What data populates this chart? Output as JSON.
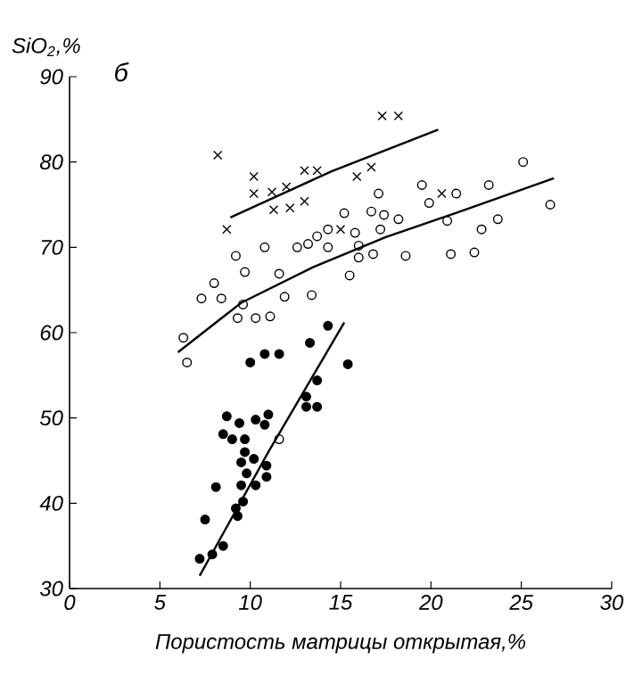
{
  "chart_data": {
    "type": "scatter",
    "xlabel": "Пористость матрицы открытая,%",
    "ylabel": "SiO$_{2}$,%",
    "annotations": [
      "б"
    ],
    "xlim": [
      0,
      30
    ],
    "ylim": [
      30,
      90
    ],
    "xticks": [
      0,
      5,
      10,
      15,
      20,
      25,
      30
    ],
    "yticks": [
      30,
      40,
      50,
      60,
      70,
      80,
      90
    ],
    "grid": false,
    "series": [
      {
        "marker": "cross",
        "color": "#000000",
        "x": [
          8.2,
          17.3,
          18.2,
          10.2,
          10.2,
          11.2,
          12.0,
          13.0,
          13.7,
          11.3,
          12.2,
          13.0,
          15.9,
          16.7,
          8.7,
          15.0,
          20.6
        ],
        "values": [
          80.8,
          85.4,
          85.4,
          78.3,
          76.3,
          76.5,
          77.1,
          79.0,
          79.0,
          74.4,
          74.6,
          75.4,
          78.3,
          79.4,
          72.1,
          72.1,
          76.3
        ]
      },
      {
        "marker": "circle",
        "color": "#000000",
        "x": [
          9.2,
          8.0,
          9.7,
          11.6,
          7.3,
          8.4,
          9.6,
          11.9,
          13.4,
          9.3,
          10.3,
          11.1,
          6.3,
          6.5,
          16.0,
          15.5,
          11.6,
          10.8,
          12.6,
          13.2,
          13.7,
          14.3,
          14.3,
          15.2,
          15.8,
          16.0,
          16.8,
          17.1,
          16.7,
          17.4,
          18.2,
          17.2,
          18.6,
          19.5,
          19.9,
          21.4,
          20.9,
          21.1,
          22.4,
          22.8,
          23.7,
          23.2,
          25.1,
          26.6
        ],
        "values": [
          69.0,
          65.8,
          67.1,
          66.9,
          64.0,
          64.0,
          63.3,
          64.2,
          64.4,
          61.7,
          61.7,
          61.9,
          59.4,
          56.5,
          68.8,
          66.7,
          47.5,
          70.0,
          70.0,
          70.4,
          71.3,
          72.1,
          70.0,
          74.0,
          71.7,
          70.2,
          69.2,
          76.3,
          74.2,
          73.8,
          73.3,
          72.1,
          69.0,
          77.3,
          75.2,
          76.3,
          73.1,
          69.2,
          69.4,
          72.1,
          73.3,
          77.3,
          80.0,
          75.0
        ]
      },
      {
        "marker": "circle",
        "color": "#000000",
        "x": [
          8.5,
          9.0,
          9.7,
          9.7,
          10.2,
          9.5,
          10.9,
          9.8,
          10.9,
          8.1,
          9.5,
          10.3,
          9.6,
          9.2,
          9.3,
          7.5,
          8.5,
          7.9,
          7.2,
          14.3,
          13.3,
          10.0,
          10.8,
          11.6,
          15.4,
          13.7,
          13.1,
          13.1,
          13.7,
          11.0,
          8.7,
          9.4,
          10.3,
          10.8
        ],
        "values": [
          48.1,
          47.5,
          47.5,
          46.0,
          45.2,
          44.8,
          44.4,
          43.5,
          43.1,
          41.9,
          42.1,
          42.1,
          40.2,
          39.4,
          38.5,
          38.1,
          35.0,
          34.0,
          33.5,
          60.8,
          58.8,
          56.5,
          57.5,
          57.5,
          56.3,
          54.4,
          52.5,
          51.3,
          51.3,
          50.4,
          50.2,
          49.4,
          49.8,
          49.2
        ]
      },
      {
        "type": "line",
        "marker": "none",
        "color": "#000000",
        "x": [
          8.9,
          14.5,
          20.4
        ],
        "values": [
          73.5,
          78.9,
          83.8
        ]
      },
      {
        "type": "line",
        "marker": "none",
        "color": "#000000",
        "x": [
          6.0,
          9.5,
          13.5,
          17.5,
          21.9,
          26.8
        ],
        "values": [
          57.7,
          63.5,
          67.7,
          71.2,
          74.4,
          78.1
        ]
      },
      {
        "type": "line",
        "marker": "none",
        "color": "#000000",
        "x": [
          7.2,
          11.0,
          15.2
        ],
        "values": [
          31.5,
          46.0,
          61.2
        ]
      }
    ]
  }
}
